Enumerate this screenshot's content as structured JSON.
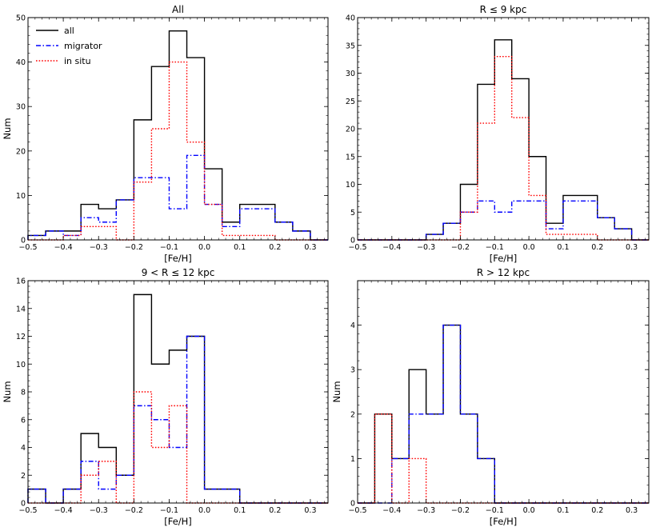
{
  "chart_data": [
    {
      "type": "histogram-step",
      "title": "All",
      "xlabel": "[Fe/H]",
      "ylabel": "Num",
      "xlim": [
        -0.5,
        0.35
      ],
      "ylim": [
        0,
        50
      ],
      "xticks": [
        -0.5,
        -0.4,
        -0.3,
        -0.2,
        -0.1,
        0.0,
        0.1,
        0.2,
        0.3
      ],
      "xtick_labels": [
        "−0.5",
        "−0.4",
        "−0.3",
        "−0.2",
        "−0.1",
        "0.0",
        "0.1",
        "0.2",
        "0.3"
      ],
      "yticks": [
        0,
        10,
        20,
        30,
        40,
        50
      ],
      "ytick_labels": [
        "0",
        "10",
        "20",
        "30",
        "40",
        "50"
      ],
      "bin_edges": [
        -0.5,
        -0.45,
        -0.4,
        -0.35,
        -0.3,
        -0.25,
        -0.2,
        -0.15,
        -0.1,
        -0.05,
        0.0,
        0.05,
        0.1,
        0.15,
        0.2,
        0.25,
        0.3,
        0.35
      ],
      "legend": {
        "placement": "top-left"
      },
      "series": [
        {
          "name": "all",
          "color": "#000000",
          "style": "solid",
          "counts": [
            1,
            2,
            2,
            8,
            7,
            9,
            27,
            39,
            47,
            41,
            16,
            4,
            8,
            8,
            4,
            2,
            0
          ]
        },
        {
          "name": "migrator",
          "color": "#0000ff",
          "style": "dashdot",
          "counts": [
            1,
            2,
            1,
            5,
            4,
            9,
            14,
            14,
            7,
            19,
            8,
            3,
            7,
            7,
            4,
            2,
            0
          ]
        },
        {
          "name": "in situ",
          "color": "#ff0000",
          "style": "dotted",
          "counts": [
            0,
            0,
            1,
            3,
            3,
            0,
            13,
            25,
            40,
            22,
            8,
            1,
            1,
            1,
            0,
            0,
            0
          ]
        }
      ]
    },
    {
      "type": "histogram-step",
      "title": "R ≤ 9 kpc",
      "xlabel": "[Fe/H]",
      "ylabel": "",
      "xlim": [
        -0.5,
        0.35
      ],
      "ylim": [
        0,
        40
      ],
      "xticks": [
        -0.5,
        -0.4,
        -0.3,
        -0.2,
        -0.1,
        0.0,
        0.1,
        0.2,
        0.3
      ],
      "xtick_labels": [
        "−0.5",
        "−0.4",
        "−0.3",
        "−0.2",
        "−0.1",
        "0.0",
        "0.1",
        "0.2",
        "0.3"
      ],
      "yticks": [
        0,
        5,
        10,
        15,
        20,
        25,
        30,
        35,
        40
      ],
      "ytick_labels": [
        "0",
        "5",
        "10",
        "15",
        "20",
        "25",
        "30",
        "35",
        "40"
      ],
      "bin_edges": [
        -0.5,
        -0.45,
        -0.4,
        -0.35,
        -0.3,
        -0.25,
        -0.2,
        -0.15,
        -0.1,
        -0.05,
        0.0,
        0.05,
        0.1,
        0.15,
        0.2,
        0.25,
        0.3,
        0.35
      ],
      "series": [
        {
          "name": "all",
          "color": "#000000",
          "style": "solid",
          "counts": [
            0,
            0,
            0,
            0,
            1,
            3,
            10,
            28,
            36,
            29,
            15,
            3,
            8,
            8,
            4,
            2,
            0
          ]
        },
        {
          "name": "migrator",
          "color": "#0000ff",
          "style": "dashdot",
          "counts": [
            0,
            0,
            0,
            0,
            1,
            3,
            5,
            7,
            5,
            7,
            7,
            2,
            7,
            7,
            4,
            2,
            0
          ]
        },
        {
          "name": "in situ",
          "color": "#ff0000",
          "style": "dotted",
          "counts": [
            0,
            0,
            0,
            0,
            0,
            0,
            5,
            21,
            33,
            22,
            8,
            1,
            1,
            1,
            0,
            0,
            0
          ]
        }
      ]
    },
    {
      "type": "histogram-step",
      "title": "9 < R ≤ 12 kpc",
      "xlabel": "[Fe/H]",
      "ylabel": "Num",
      "xlim": [
        -0.5,
        0.35
      ],
      "ylim": [
        0,
        16
      ],
      "xticks": [
        -0.5,
        -0.4,
        -0.3,
        -0.2,
        -0.1,
        0.0,
        0.1,
        0.2,
        0.3
      ],
      "xtick_labels": [
        "−0.5",
        "−0.4",
        "−0.3",
        "−0.2",
        "−0.1",
        "0.0",
        "0.1",
        "0.2",
        "0.3"
      ],
      "yticks": [
        0,
        2,
        4,
        6,
        8,
        10,
        12,
        14,
        16
      ],
      "ytick_labels": [
        "0",
        "2",
        "4",
        "6",
        "8",
        "10",
        "12",
        "14",
        "16"
      ],
      "bin_edges": [
        -0.5,
        -0.45,
        -0.4,
        -0.35,
        -0.3,
        -0.25,
        -0.2,
        -0.15,
        -0.1,
        -0.05,
        0.0,
        0.05,
        0.1,
        0.15,
        0.2,
        0.25,
        0.3,
        0.35
      ],
      "series": [
        {
          "name": "all",
          "color": "#000000",
          "style": "solid",
          "counts": [
            1,
            0,
            1,
            5,
            4,
            2,
            15,
            10,
            11,
            12,
            1,
            1,
            0,
            0,
            0,
            0,
            0
          ]
        },
        {
          "name": "migrator",
          "color": "#0000ff",
          "style": "dashdot",
          "counts": [
            1,
            0,
            1,
            3,
            1,
            2,
            7,
            6,
            4,
            12,
            1,
            1,
            0,
            0,
            0,
            0,
            0
          ]
        },
        {
          "name": "in situ",
          "color": "#ff0000",
          "style": "dotted",
          "counts": [
            0,
            0,
            0,
            2,
            3,
            0,
            8,
            4,
            7,
            0,
            0,
            0,
            0,
            0,
            0,
            0,
            0
          ]
        }
      ]
    },
    {
      "type": "histogram-step",
      "title": "R > 12 kpc",
      "xlabel": "[Fe/H]",
      "ylabel": "Num",
      "xlim": [
        -0.5,
        0.35
      ],
      "ylim": [
        0,
        5
      ],
      "xticks": [
        -0.5,
        -0.4,
        -0.3,
        -0.2,
        -0.1,
        0.0,
        0.1,
        0.2,
        0.3
      ],
      "xtick_labels": [
        "−0.5",
        "−0.4",
        "−0.3",
        "−0.2",
        "−0.1",
        "0.0",
        "0.1",
        "0.2",
        "0.3"
      ],
      "yticks": [
        0,
        1,
        2,
        3,
        4
      ],
      "ytick_labels": [
        "0",
        "1",
        "2",
        "3",
        "4"
      ],
      "bin_edges": [
        -0.5,
        -0.45,
        -0.4,
        -0.35,
        -0.3,
        -0.25,
        -0.2,
        -0.15,
        -0.1,
        -0.05,
        0.0,
        0.05,
        0.1,
        0.15,
        0.2,
        0.25,
        0.3,
        0.35
      ],
      "series": [
        {
          "name": "all",
          "color": "#000000",
          "style": "solid",
          "counts": [
            0,
            2,
            1,
            3,
            2,
            4,
            2,
            1,
            0,
            0,
            0,
            0,
            0,
            0,
            0,
            0,
            0
          ]
        },
        {
          "name": "migrator",
          "color": "#0000ff",
          "style": "dashdot",
          "counts": [
            0,
            0,
            1,
            2,
            2,
            4,
            2,
            1,
            0,
            0,
            0,
            0,
            0,
            0,
            0,
            0,
            0
          ]
        },
        {
          "name": "in situ",
          "color": "#ff0000",
          "style": "dotted",
          "counts": [
            0,
            2,
            0,
            1,
            0,
            0,
            0,
            0,
            0,
            0,
            0,
            0,
            0,
            0,
            0,
            0,
            0
          ]
        }
      ]
    }
  ]
}
